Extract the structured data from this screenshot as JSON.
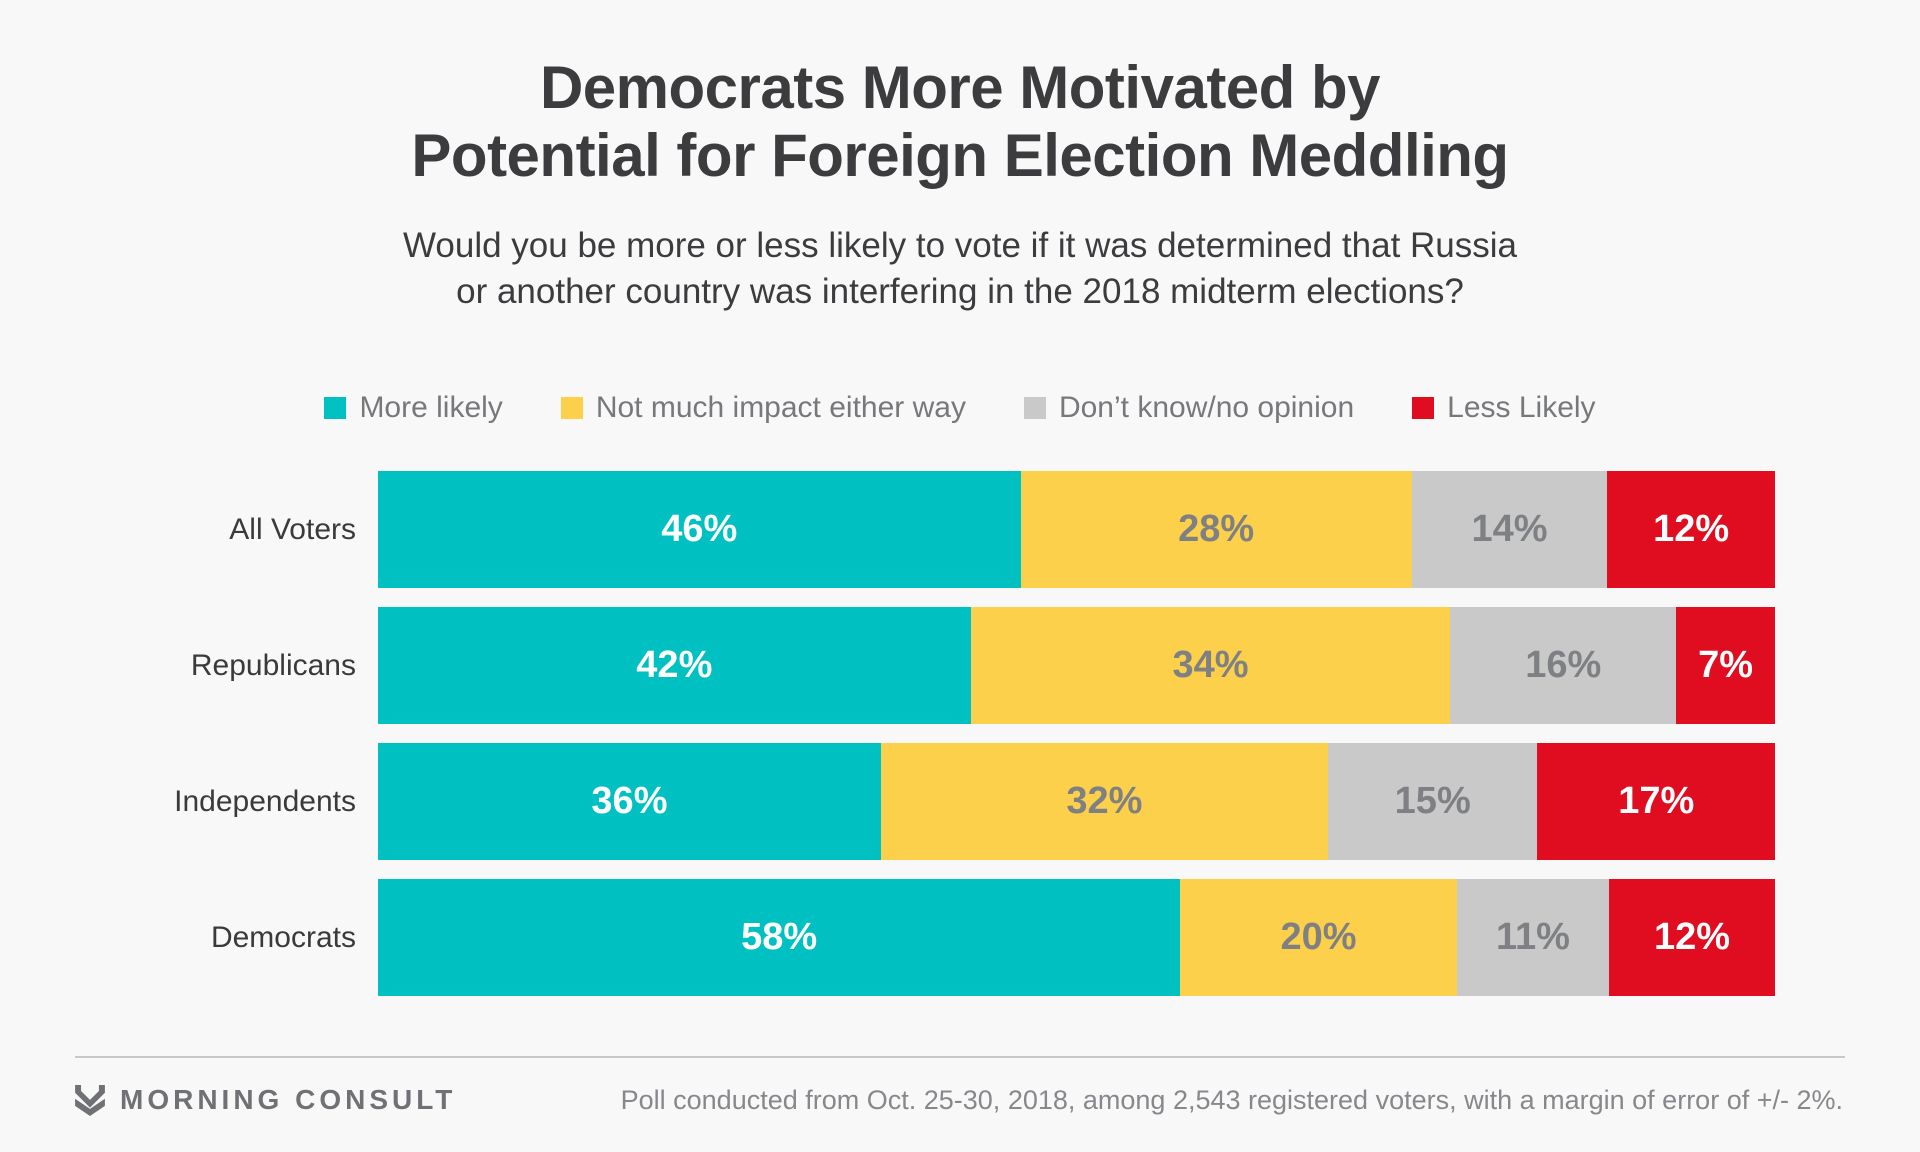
{
  "page_background": "#F8F8F9",
  "header": {
    "title_line1": "Democrats More Motivated by",
    "title_line2": "Potential for Foreign Election Meddling",
    "subtitle_line1": "Would you be more or less likely to vote if it was determined that Russia",
    "subtitle_line2": "or another country was interfering in the 2018 midterm elections?"
  },
  "chart_data": {
    "type": "bar",
    "orientation": "horizontal",
    "stacked": true,
    "unit": "%",
    "grid": false,
    "axes_visible": false,
    "legend_position": "top",
    "categories": [
      "All Voters",
      "Republicans",
      "Independents",
      "Democrats"
    ],
    "series": [
      {
        "name": "More likely",
        "color": "#00C0C2",
        "label_color": "#FFFFFF",
        "values": [
          46,
          42,
          36,
          58
        ]
      },
      {
        "name": "Not much impact either way",
        "color": "#FCD04B",
        "label_color": "#7E8083",
        "values": [
          28,
          34,
          32,
          20
        ]
      },
      {
        "name": "Don’t know/no opinion",
        "color": "#C9C9CA",
        "label_color": "#7E8083",
        "values": [
          14,
          16,
          15,
          11
        ]
      },
      {
        "name": "Less Likely",
        "color": "#E00C20",
        "label_color": "#FFFFFF",
        "values": [
          12,
          7,
          17,
          12
        ]
      }
    ]
  },
  "footer": {
    "logo_text": "MORNING CONSULT",
    "note": "Poll conducted from Oct. 25-30, 2018, among 2,543 registered voters, with a margin of error of +/- 2%."
  }
}
